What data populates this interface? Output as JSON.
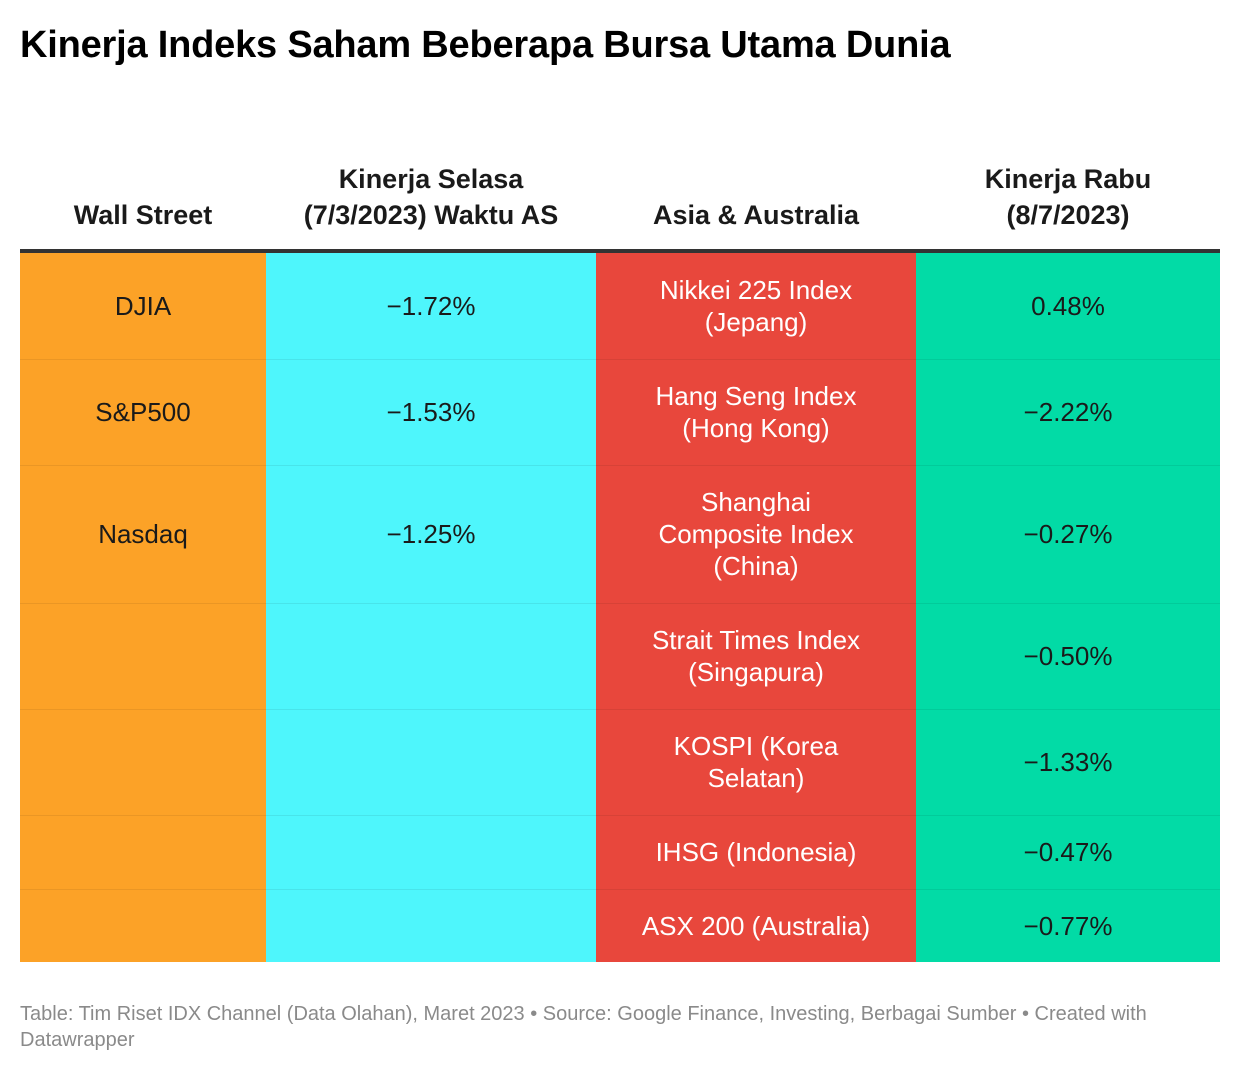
{
  "title": "Kinerja Indeks Saham Beberapa Bursa Utama Dunia",
  "colors": {
    "wall_street_bg": "#fca227",
    "selasa_bg": "#4ef6fc",
    "asia_bg": "#e8473c",
    "rabu_bg": "#02dba6",
    "header_rule": "#333333",
    "footer_text": "#8a8a8a"
  },
  "chart_data": {
    "type": "table",
    "columns": [
      "Wall Street",
      "Kinerja Selasa (7/3/2023) Waktu AS",
      "Asia & Australia",
      "Kinerja Rabu (8/7/2023)"
    ],
    "rows": [
      [
        "DJIA",
        "−1.72%",
        "Nikkei 225 Index (Jepang)",
        "0.48%"
      ],
      [
        "S&P500",
        "−1.53%",
        "Hang Seng Index (Hong Kong)",
        "−2.22%"
      ],
      [
        "Nasdaq",
        "−1.25%",
        "Shanghai Composite Index (China)",
        "−0.27%"
      ],
      [
        "",
        "",
        "Strait Times Index (Singapura)",
        "−0.50%"
      ],
      [
        "",
        "",
        "KOSPI (Korea Selatan)",
        "−1.33%"
      ],
      [
        "",
        "",
        "IHSG (Indonesia)",
        "−0.47%"
      ],
      [
        "",
        "",
        "ASX 200 (Australia)",
        "−0.77%"
      ]
    ]
  },
  "footer": "Table: Tim Riset IDX Channel (Data Olahan), Maret 2023 • Source: Google Finance, Investing, Berbagai Sumber • Created with Datawrapper"
}
